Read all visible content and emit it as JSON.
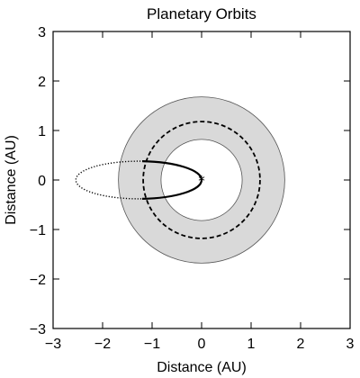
{
  "chart_data": {
    "type": "scatter",
    "title": "Planetary Orbits",
    "xlabel": "Distance (AU)",
    "ylabel": "Distance (AU)",
    "xlim": [
      -3,
      3
    ],
    "ylim": [
      -3,
      3
    ],
    "xticks": [
      -3,
      -2,
      -1,
      0,
      1,
      2,
      3
    ],
    "yticks": [
      -3,
      -2,
      -1,
      0,
      1,
      2,
      3
    ],
    "xtick_labels": [
      "−3",
      "−2",
      "−1",
      "0",
      "1",
      "2",
      "3"
    ],
    "ytick_labels": [
      "−3",
      "−2",
      "−1",
      "0",
      "1",
      "2",
      "3"
    ],
    "grid": false,
    "star": {
      "x": 0,
      "y": 0,
      "marker": "*"
    },
    "habitable_zone": {
      "inner_radius": 0.82,
      "outer_radius": 1.68,
      "color": "#d9d9d9"
    },
    "circular_orbit": {
      "radius": 1.18,
      "style": "dashed"
    },
    "elliptical_orbit": {
      "center": [
        -1.27,
        0
      ],
      "semi_major_axis": 1.27,
      "semi_minor_axis": 0.38,
      "solid_from_x": -1.2,
      "solid_to_x": 0
    },
    "colors": {
      "zone_fill": "#d9d9d9",
      "line": "#000000"
    }
  }
}
